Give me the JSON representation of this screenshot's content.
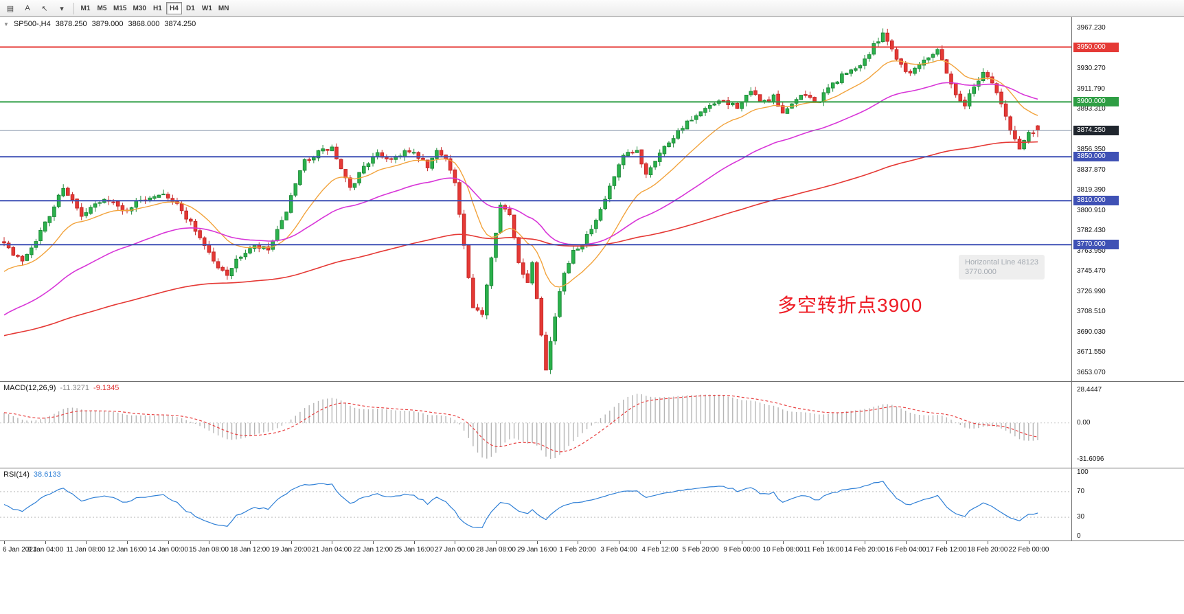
{
  "toolbar": {
    "icons": [
      {
        "name": "chart-grid-icon",
        "glyph": "▤"
      },
      {
        "name": "text-tool-icon",
        "glyph": "A"
      },
      {
        "name": "cursor-tool-icon",
        "glyph": "↖"
      },
      {
        "name": "tool-dropdown-arrow-icon",
        "glyph": "▾"
      }
    ],
    "timeframes": [
      {
        "label": "M1",
        "active": false
      },
      {
        "label": "M5",
        "active": false
      },
      {
        "label": "M15",
        "active": false
      },
      {
        "label": "M30",
        "active": false
      },
      {
        "label": "H1",
        "active": false
      },
      {
        "label": "H4",
        "active": true
      },
      {
        "label": "D1",
        "active": false
      },
      {
        "label": "W1",
        "active": false
      },
      {
        "label": "MN",
        "active": false
      }
    ]
  },
  "chart": {
    "symbol_title": "SP500-,H4",
    "ohlc": {
      "open": "3878.250",
      "high": "3879.000",
      "low": "3868.000",
      "close": "3874.250"
    },
    "annotation": {
      "text": "多空转折点3900",
      "color": "#ee1c25"
    },
    "tooltip": {
      "line1": "Horizontal Line 48123",
      "line2": "3770.000"
    }
  },
  "chart_data": {
    "type": "candlestick",
    "symbol": "SP500-",
    "timeframe": "H4",
    "price_axis": {
      "min": 3653.07,
      "max": 3967.23,
      "ticks": [
        "3967.230",
        "3930.270",
        "3911.790",
        "3893.310",
        "3856.350",
        "3837.870",
        "3819.390",
        "3800.910",
        "3782.430",
        "3763.950",
        "3745.470",
        "3726.990",
        "3708.510",
        "3690.030",
        "3671.550",
        "3653.070"
      ]
    },
    "hlines": [
      {
        "price": 3950.0,
        "label": "3950.000",
        "color": "#e53935",
        "width": 2
      },
      {
        "price": 3900.0,
        "label": "3900.000",
        "color": "#2e9e44",
        "width": 2
      },
      {
        "price": 3850.0,
        "label": "3850.000",
        "color": "#3f51b5",
        "width": 2
      },
      {
        "price": 3810.0,
        "label": "3810.000",
        "color": "#3f51b5",
        "width": 2
      },
      {
        "price": 3770.0,
        "label": "3770.000",
        "color": "#3f51b5",
        "width": 2
      }
    ],
    "current_price": {
      "value": 3874.25,
      "label": "3874.250",
      "line_color": "#7a8aa0",
      "badge_color": "#20262e"
    },
    "candles": {
      "count": 228,
      "seed": 7,
      "spacing": 6.63,
      "body_width": 4.6,
      "up_color": "#2bb24c",
      "up_border": "#1f8a3a",
      "down_color": "#e53935",
      "down_border": "#c62828",
      "waypoints": [
        [
          0,
          3774
        ],
        [
          2,
          3760
        ],
        [
          4,
          3756
        ],
        [
          7,
          3775
        ],
        [
          10,
          3796
        ],
        [
          13,
          3823
        ],
        [
          15,
          3810
        ],
        [
          17,
          3795
        ],
        [
          20,
          3806
        ],
        [
          23,
          3812
        ],
        [
          26,
          3800
        ],
        [
          29,
          3808
        ],
        [
          32,
          3814
        ],
        [
          35,
          3818
        ],
        [
          38,
          3806
        ],
        [
          41,
          3790
        ],
        [
          44,
          3770
        ],
        [
          47,
          3748
        ],
        [
          49,
          3744
        ],
        [
          52,
          3760
        ],
        [
          55,
          3768
        ],
        [
          58,
          3765
        ],
        [
          61,
          3790
        ],
        [
          64,
          3824
        ],
        [
          66,
          3846
        ],
        [
          69,
          3854
        ],
        [
          72,
          3858
        ],
        [
          74,
          3838
        ],
        [
          76,
          3820
        ],
        [
          79,
          3842
        ],
        [
          82,
          3852
        ],
        [
          85,
          3848
        ],
        [
          88,
          3855
        ],
        [
          91,
          3850
        ],
        [
          93,
          3840
        ],
        [
          95,
          3855
        ],
        [
          97,
          3850
        ],
        [
          99,
          3826
        ],
        [
          101,
          3768
        ],
        [
          103,
          3710
        ],
        [
          105,
          3708
        ],
        [
          107,
          3760
        ],
        [
          109,
          3806
        ],
        [
          111,
          3796
        ],
        [
          113,
          3755
        ],
        [
          115,
          3735
        ],
        [
          116,
          3755
        ],
        [
          118,
          3690
        ],
        [
          119,
          3658
        ],
        [
          121,
          3705
        ],
        [
          123,
          3745
        ],
        [
          125,
          3765
        ],
        [
          127,
          3772
        ],
        [
          130,
          3790
        ],
        [
          133,
          3822
        ],
        [
          136,
          3850
        ],
        [
          139,
          3855
        ],
        [
          141,
          3835
        ],
        [
          143,
          3848
        ],
        [
          146,
          3864
        ],
        [
          149,
          3878
        ],
        [
          152,
          3886
        ],
        [
          155,
          3896
        ],
        [
          158,
          3900
        ],
        [
          161,
          3896
        ],
        [
          164,
          3908
        ],
        [
          167,
          3900
        ],
        [
          169,
          3904
        ],
        [
          171,
          3888
        ],
        [
          173,
          3900
        ],
        [
          176,
          3906
        ],
        [
          179,
          3900
        ],
        [
          181,
          3912
        ],
        [
          184,
          3924
        ],
        [
          187,
          3930
        ],
        [
          190,
          3944
        ],
        [
          193,
          3964
        ],
        [
          195,
          3948
        ],
        [
          197,
          3934
        ],
        [
          199,
          3926
        ],
        [
          201,
          3936
        ],
        [
          203,
          3942
        ],
        [
          205,
          3948
        ],
        [
          207,
          3928
        ],
        [
          209,
          3906
        ],
        [
          211,
          3898
        ],
        [
          213,
          3914
        ],
        [
          215,
          3928
        ],
        [
          217,
          3918
        ],
        [
          219,
          3898
        ],
        [
          221,
          3874
        ],
        [
          223,
          3858
        ],
        [
          225,
          3872
        ],
        [
          227,
          3874.25
        ]
      ],
      "overrides": [
        {
          "i": 227,
          "o": 3878.25,
          "h": 3879.0,
          "l": 3868.0,
          "c": 3874.25
        },
        {
          "i": 193,
          "h": 3967.0
        },
        {
          "i": 119,
          "l": 3656.5
        }
      ]
    },
    "moving_averages": [
      {
        "name": "fast-ma",
        "period": 16,
        "start": 3742,
        "color": "#f2a33c",
        "width": 1.4
      },
      {
        "name": "medium-ma",
        "period": 48,
        "start": 3703,
        "color": "#d836d8",
        "width": 1.6
      },
      {
        "name": "slow-ma",
        "period": 160,
        "start": 3686,
        "color": "#e53935",
        "width": 1.6
      }
    ],
    "macd": {
      "label": "MACD(12,26,9)",
      "value_main": "-11.3271",
      "value_signal": "-9.1345",
      "fast": 12,
      "slow": 26,
      "signal": 9,
      "initial_spread": 5,
      "range": [
        -31.6096,
        28.4447
      ],
      "ticks": [
        "28.4447",
        "0.00",
        "-31.6096"
      ],
      "hist_color": "#b5b5b5",
      "signal_color": "#e84040"
    },
    "rsi": {
      "label": "RSI(14)",
      "value": "38.6133",
      "period": 14,
      "levels": [
        70,
        30
      ],
      "range": [
        0,
        100
      ],
      "ticks": [
        "100",
        "70",
        "30",
        "0"
      ],
      "line_color": "#2e7fd6"
    },
    "time_axis": {
      "bars_per_label": 9,
      "labels": [
        "6 Jan 2021",
        "8 Jan 04:00",
        "11 Jan 08:00",
        "12 Jan 16:00",
        "14 Jan 00:00",
        "15 Jan 08:00",
        "18 Jan 12:00",
        "19 Jan 20:00",
        "21 Jan 04:00",
        "22 Jan 12:00",
        "25 Jan 16:00",
        "27 Jan 00:00",
        "28 Jan 08:00",
        "29 Jan 16:00",
        "1 Feb 20:00",
        "3 Feb 04:00",
        "4 Feb 12:00",
        "5 Feb 20:00",
        "9 Feb 00:00",
        "10 Feb 08:00",
        "11 Feb 16:00",
        "14 Feb 20:00",
        "16 Feb 04:00",
        "17 Feb 12:00",
        "18 Feb 20:00",
        "22 Feb 00:00"
      ]
    }
  }
}
